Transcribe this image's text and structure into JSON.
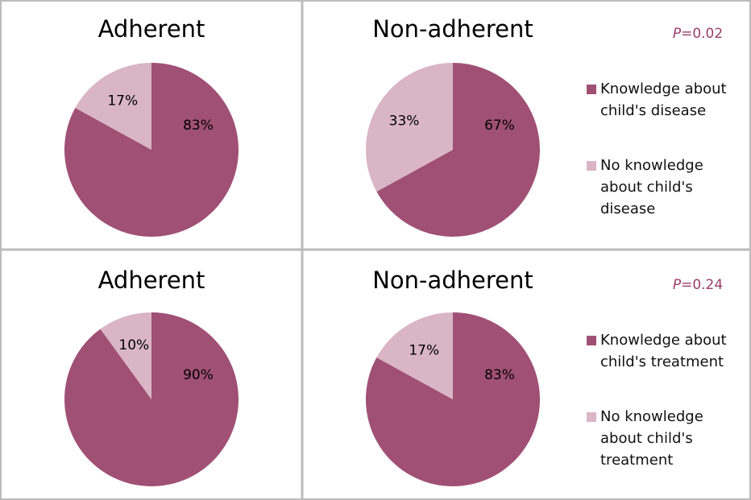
{
  "chart_data": [
    {
      "type": "pie",
      "title": "Adherent",
      "values": [
        83,
        17
      ],
      "value_labels": [
        "83%",
        "17%"
      ],
      "colors": [
        "#a05075",
        "#d9b5c5"
      ]
    },
    {
      "type": "pie",
      "title": "Non-adherent",
      "values": [
        67,
        33
      ],
      "value_labels": [
        "67%",
        "33%"
      ],
      "colors": [
        "#a05075",
        "#d9b5c5"
      ],
      "annotation": [
        "P",
        "=0.02"
      ],
      "categories": [
        "Knowledge about child's disease",
        "No knowledge about child's disease"
      ],
      "legend": "right"
    },
    {
      "type": "pie",
      "title": "Adherent",
      "values": [
        90,
        10
      ],
      "value_labels": [
        "90%",
        "10%"
      ],
      "colors": [
        "#a05075",
        "#d9b5c5"
      ]
    },
    {
      "type": "pie",
      "title": "Non-adherent",
      "values": [
        83,
        17
      ],
      "value_labels": [
        "83%",
        "17%"
      ],
      "colors": [
        "#a05075",
        "#d9b5c5"
      ],
      "annotation": [
        "P",
        "=0.24"
      ],
      "categories": [
        "Knowledge about child's treatment",
        "No knowledge about child's treatment"
      ],
      "legend": "right"
    }
  ]
}
